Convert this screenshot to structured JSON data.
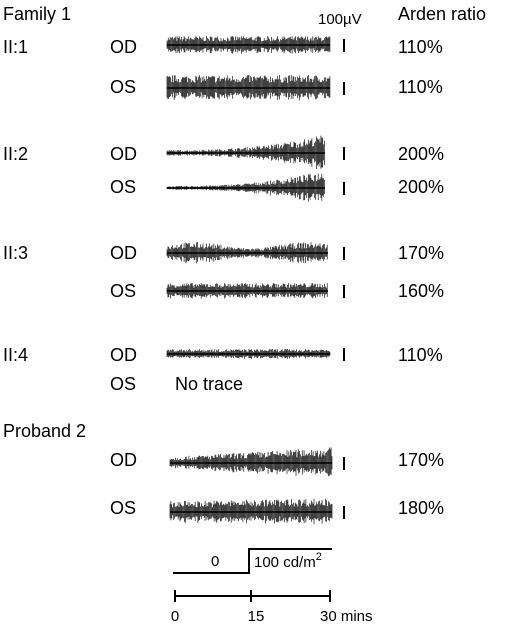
{
  "header": {
    "family": "Family 1",
    "scale": "100µV",
    "ratio_heading": "Arden ratio"
  },
  "groups": [
    {
      "label": "II:1",
      "eyes": [
        {
          "eye": "OD",
          "ratio": "110%"
        },
        {
          "eye": "OS",
          "ratio": "110%"
        }
      ]
    },
    {
      "label": "II:2",
      "eyes": [
        {
          "eye": "OD",
          "ratio": "200%"
        },
        {
          "eye": "OS",
          "ratio": "200%"
        }
      ]
    },
    {
      "label": "II:3",
      "eyes": [
        {
          "eye": "OD",
          "ratio": "170%"
        },
        {
          "eye": "OS",
          "ratio": "160%"
        }
      ]
    },
    {
      "label": "II:4",
      "eyes": [
        {
          "eye": "OD",
          "ratio": "110%"
        },
        {
          "eye": "OS",
          "note": "No trace"
        }
      ]
    }
  ],
  "proband": {
    "label": "Proband 2",
    "eyes": [
      {
        "eye": "OD",
        "ratio": "170%"
      },
      {
        "eye": "OS",
        "ratio": "180%"
      }
    ]
  },
  "stimulus": {
    "dark": "0",
    "light": "100 cd/m",
    "light_sup": "2"
  },
  "timeline": {
    "ticks": [
      "0",
      "15",
      "30 mins"
    ]
  }
}
